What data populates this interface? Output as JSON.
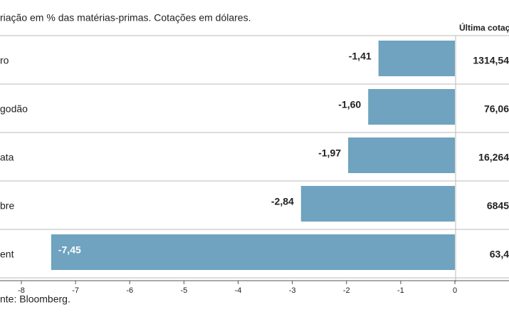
{
  "chart_data": {
    "type": "bar",
    "orientation": "horizontal",
    "title": "riação em % das matérias-primas. Cotações em dólares.",
    "source": "nte: Bloomberg.",
    "categories": [
      "ro",
      "godão",
      "ata",
      "bre",
      "ent"
    ],
    "values": [
      -1.41,
      -1.6,
      -1.97,
      -2.84,
      -7.45
    ],
    "value_labels": [
      "-1,41",
      "-1,60",
      "-1,97",
      "-2,84",
      "-7,45"
    ],
    "color": "#6fa3bf",
    "xlim": [
      -8,
      0
    ],
    "xticks": [
      -8,
      -7,
      -6,
      -5,
      -4,
      -3,
      -2,
      -1,
      0
    ],
    "side_header": "Última cotaç",
    "side_values": [
      "1314,54",
      "76,06",
      "16,264",
      "6845",
      "63,4"
    ]
  }
}
